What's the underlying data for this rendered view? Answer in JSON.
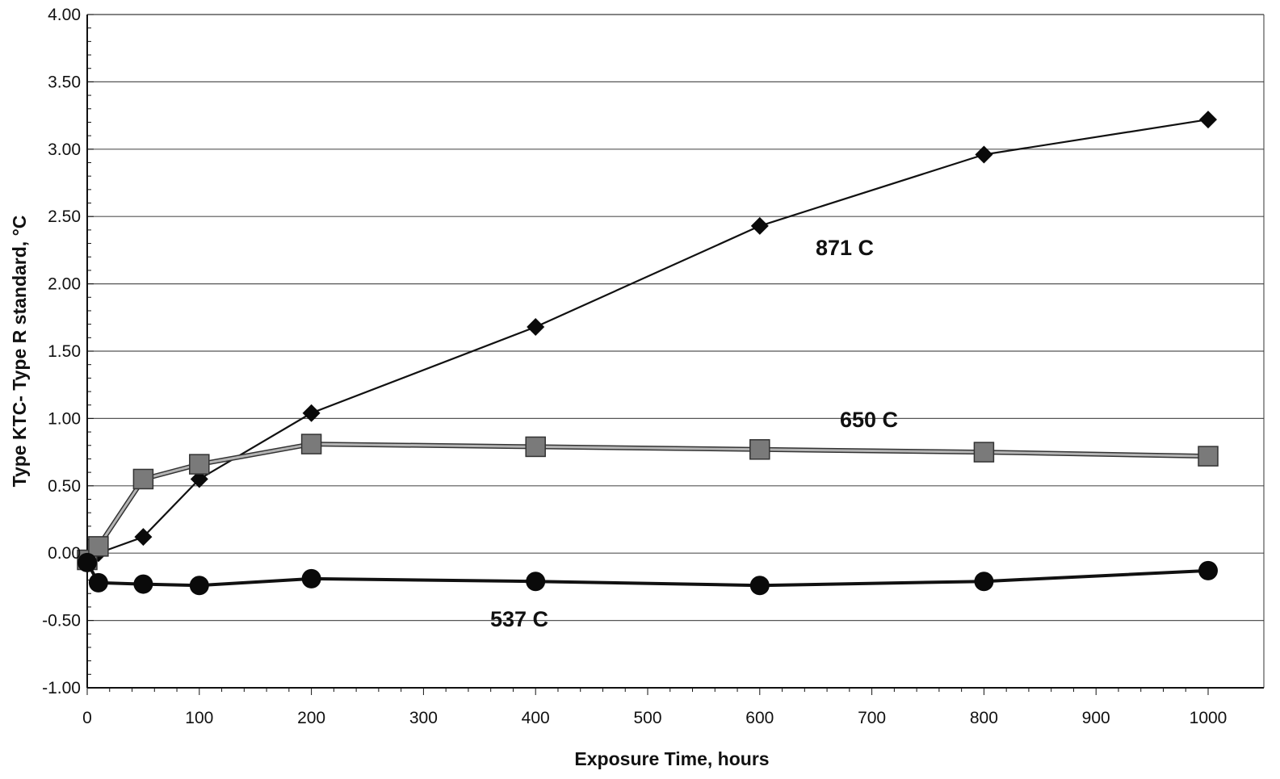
{
  "chart_data": {
    "type": "line",
    "title": "",
    "xlabel": "Exposure Time, hours",
    "ylabel": "Type KTC- Type R standard,  °C",
    "xlim": [
      0,
      1000
    ],
    "ylim": [
      -1.0,
      4.0
    ],
    "x_ticks": [
      "0",
      "100",
      "200",
      "300",
      "400",
      "500",
      "600",
      "700",
      "800",
      "900",
      "1000"
    ],
    "y_ticks": [
      "-1.00",
      "-0.50",
      "0.00",
      "0.50",
      "1.00",
      "1.50",
      "2.00",
      "2.50",
      "3.00",
      "3.50",
      "4.00"
    ],
    "grid": "horizontal",
    "legend": "none",
    "series": [
      {
        "name": "871 C",
        "marker": "diamond",
        "color": "#111111",
        "x": [
          0,
          10,
          50,
          100,
          200,
          400,
          600,
          800,
          1000
        ],
        "y": [
          -0.08,
          0.0,
          0.12,
          0.55,
          1.04,
          1.68,
          2.43,
          2.96,
          3.22
        ]
      },
      {
        "name": "650 C",
        "marker": "square",
        "color": "#7a7a7a",
        "x": [
          0,
          10,
          50,
          100,
          200,
          400,
          600,
          800,
          1000
        ],
        "y": [
          -0.05,
          0.05,
          0.55,
          0.66,
          0.81,
          0.79,
          0.77,
          0.75,
          0.72
        ]
      },
      {
        "name": "537 C",
        "marker": "circle",
        "color": "#111111",
        "x": [
          0,
          10,
          50,
          100,
          200,
          400,
          600,
          800,
          1000
        ],
        "y": [
          -0.07,
          -0.22,
          -0.23,
          -0.24,
          -0.19,
          -0.21,
          -0.24,
          -0.21,
          -0.13
        ]
      }
    ]
  }
}
